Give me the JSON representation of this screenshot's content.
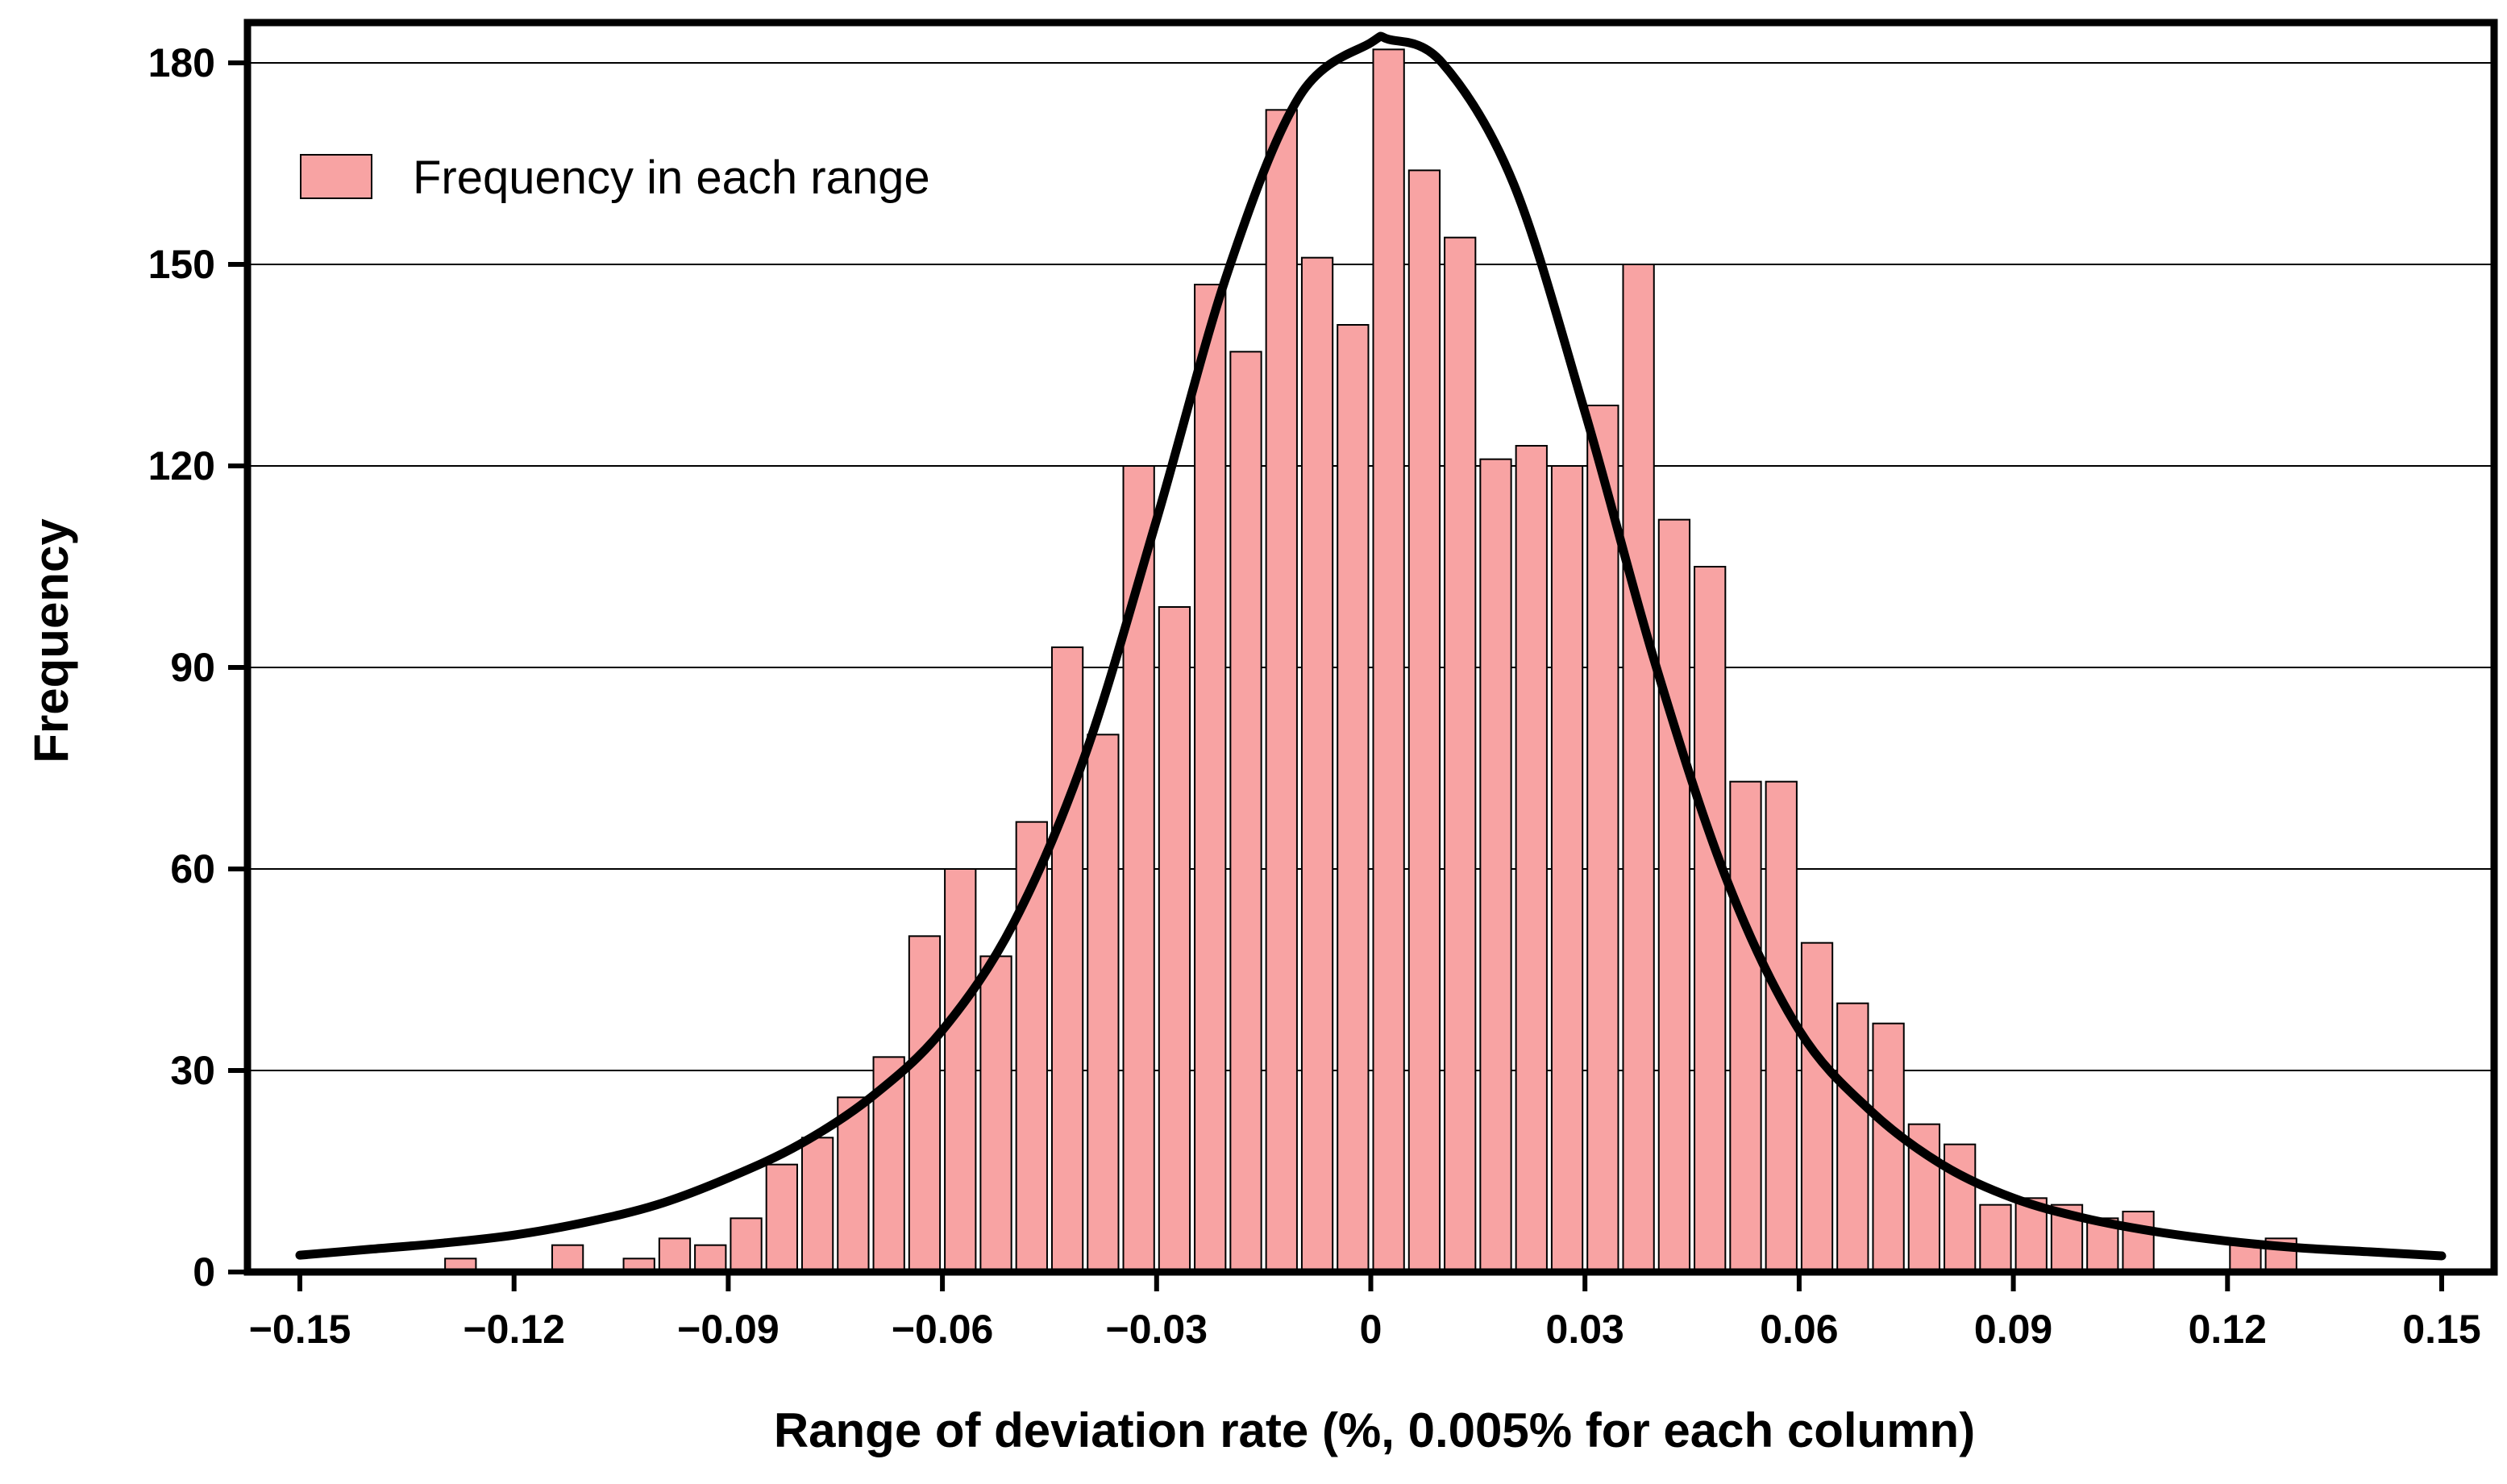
{
  "chart_data": {
    "type": "bar",
    "title": "",
    "xlabel": "Range of deviation rate (%, 0.005% for each column)",
    "ylabel": "Frequency",
    "xlim": [
      -0.15,
      0.15
    ],
    "ylim": [
      0,
      186
    ],
    "bin_width": 0.005,
    "grid": {
      "horizontal": true,
      "vertical": false
    },
    "legend": {
      "position": "top-left",
      "entries": [
        "Frequency in each range"
      ]
    },
    "colors": {
      "bar_fill": "#f8a3a3",
      "bar_stroke": "#000000",
      "curve": "#000000",
      "grid": "#000000",
      "axis": "#000000"
    },
    "x_ticks": [
      {
        "value": -0.15,
        "label": "−0.15"
      },
      {
        "value": -0.12,
        "label": "−0.12"
      },
      {
        "value": -0.09,
        "label": "−0.09"
      },
      {
        "value": -0.06,
        "label": "−0.06"
      },
      {
        "value": -0.03,
        "label": "−0.03"
      },
      {
        "value": 0,
        "label": "0"
      },
      {
        "value": 0.03,
        "label": "0.03"
      },
      {
        "value": 0.06,
        "label": "0.06"
      },
      {
        "value": 0.09,
        "label": "0.09"
      },
      {
        "value": 0.12,
        "label": "0.12"
      },
      {
        "value": 0.15,
        "label": "0.15"
      }
    ],
    "y_ticks": [
      {
        "value": 0,
        "label": "0"
      },
      {
        "value": 30,
        "label": "30"
      },
      {
        "value": 60,
        "label": "60"
      },
      {
        "value": 90,
        "label": "90"
      },
      {
        "value": 120,
        "label": "120"
      },
      {
        "value": 150,
        "label": "150"
      },
      {
        "value": 180,
        "label": "180"
      }
    ],
    "series": [
      {
        "name": "Frequency in each range",
        "type": "bar",
        "x": [
          -0.1475,
          -0.1425,
          -0.1375,
          -0.1325,
          -0.1275,
          -0.1225,
          -0.1175,
          -0.1125,
          -0.1075,
          -0.1025,
          -0.0975,
          -0.0925,
          -0.0875,
          -0.0825,
          -0.0775,
          -0.0725,
          -0.0675,
          -0.0625,
          -0.0575,
          -0.0525,
          -0.0475,
          -0.0425,
          -0.0375,
          -0.0325,
          -0.0275,
          -0.0225,
          -0.0175,
          -0.0125,
          -0.0075,
          -0.0025,
          0.0025,
          0.0075,
          0.0125,
          0.0175,
          0.0225,
          0.0275,
          0.0325,
          0.0375,
          0.0425,
          0.0475,
          0.0525,
          0.0575,
          0.0625,
          0.0675,
          0.0725,
          0.0775,
          0.0825,
          0.0875,
          0.0925,
          0.0975,
          0.1025,
          0.1075,
          0.1125,
          0.1175,
          0.1225,
          0.1275,
          0.1325,
          0.1375,
          0.1425,
          0.1475
        ],
        "values": [
          0,
          0,
          0,
          0,
          2,
          0,
          0,
          4,
          0,
          2,
          5,
          4,
          8,
          16,
          20,
          26,
          32,
          50,
          60,
          47,
          67,
          93,
          80,
          120,
          99,
          147,
          137,
          173,
          151,
          141,
          182,
          164,
          154,
          121,
          123,
          120,
          129,
          150,
          112,
          105,
          73,
          73,
          49,
          40,
          37,
          22,
          19,
          10,
          11,
          10,
          8,
          9,
          0,
          0,
          4,
          5,
          0,
          0,
          0,
          0
        ]
      },
      {
        "name": "Fitted curve",
        "type": "line",
        "x": [
          -0.15,
          -0.14,
          -0.13,
          -0.12,
          -0.11,
          -0.1,
          -0.09,
          -0.08,
          -0.07,
          -0.06,
          -0.05,
          -0.04,
          -0.03,
          -0.02,
          -0.01,
          0,
          0.0025,
          0.01,
          0.02,
          0.03,
          0.04,
          0.05,
          0.06,
          0.07,
          0.08,
          0.09,
          0.1,
          0.11,
          0.12,
          0.13,
          0.14,
          0.15
        ],
        "values": [
          2.5,
          3.4,
          4.3,
          5.5,
          7.4,
          10,
          14,
          19,
          26,
          36,
          52,
          77,
          112,
          149,
          175,
          183,
          183.5,
          180,
          162,
          128,
          90,
          58,
          36,
          24,
          16,
          11,
          8,
          6,
          4.6,
          3.6,
          3,
          2.4
        ]
      }
    ]
  }
}
